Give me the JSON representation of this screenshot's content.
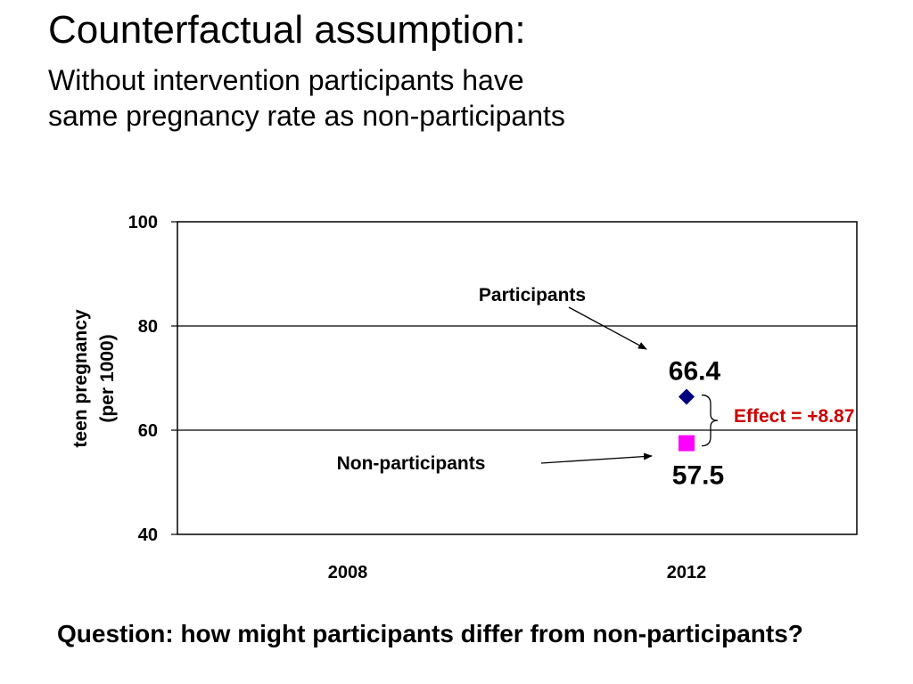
{
  "slide": {
    "title": "Counterfactual assumption:",
    "subtitle_lines": [
      "Without intervention participants have",
      "same pregnancy rate as non-participants"
    ],
    "question": "Question: how might participants differ from non-participants?"
  },
  "chart_data": {
    "type": "scatter",
    "title": "",
    "xlabel": "",
    "ylabel_lines": [
      "teen pregnancy",
      "(per 1000)"
    ],
    "categories": [
      "2008",
      "2012"
    ],
    "ylim": [
      40,
      100
    ],
    "yticks": [
      40,
      60,
      80,
      100
    ],
    "gridlines": [
      60,
      80
    ],
    "series": [
      {
        "name": "Participants",
        "marker": "diamond",
        "color": "#000080",
        "points": [
          {
            "x": "2012",
            "y": 66.4
          }
        ],
        "value_label": "66.4"
      },
      {
        "name": "Non-participants",
        "marker": "square",
        "color": "#ff00ff",
        "points": [
          {
            "x": "2012",
            "y": 57.5
          }
        ],
        "value_label": "57.5"
      }
    ],
    "annotations": {
      "effect_label": "Effect = +8.87",
      "effect_color": "#cc0000"
    }
  }
}
